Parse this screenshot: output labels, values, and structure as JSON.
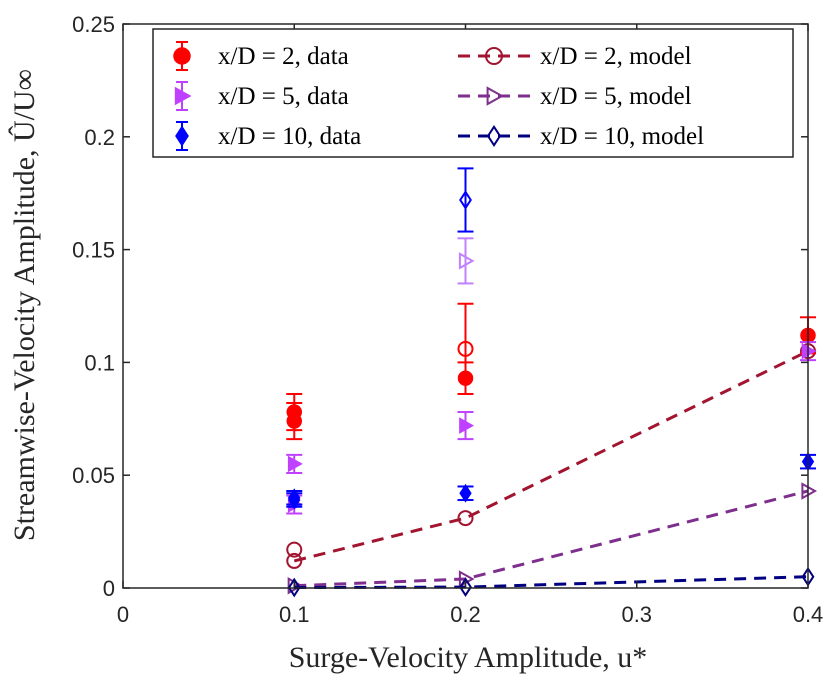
{
  "chart_data": {
    "type": "scatter",
    "xlabel": "Surge-Velocity Amplitude, u*",
    "ylabel": "Streamwise-Velocity Amplitude, Û/U∞",
    "xlim": [
      0,
      0.4
    ],
    "ylim": [
      0,
      0.25
    ],
    "xticks": [
      "0",
      "0.1",
      "0.2",
      "0.3",
      "0.4"
    ],
    "yticks": [
      "0",
      "0.05",
      "0.1",
      "0.15",
      "0.2",
      "0.25"
    ],
    "legend_position": "top",
    "series": [
      {
        "name": "x/D = 2, data",
        "kind": "data",
        "marker": "circle",
        "color": "#ff0000",
        "points": [
          {
            "x": 0.1,
            "y": 0.078,
            "err": 0.008
          },
          {
            "x": 0.1,
            "y": 0.074,
            "err": 0.008
          },
          {
            "x": 0.2,
            "y": 0.093,
            "err": 0.007
          },
          {
            "x": 0.4,
            "y": 0.112,
            "err": 0.008
          }
        ]
      },
      {
        "name": "x/D = 5, data",
        "kind": "data",
        "marker": "triangle-right",
        "color": "#c040ff",
        "points": [
          {
            "x": 0.1,
            "y": 0.055,
            "err": 0.004
          },
          {
            "x": 0.1,
            "y": 0.037,
            "err": 0.004
          },
          {
            "x": 0.2,
            "y": 0.072,
            "err": 0.006
          },
          {
            "x": 0.4,
            "y": 0.105,
            "err": 0.004
          }
        ]
      },
      {
        "name": "x/D = 10, data",
        "kind": "data",
        "marker": "diamond",
        "color": "#0000ff",
        "points": [
          {
            "x": 0.1,
            "y": 0.04,
            "err": 0.003
          },
          {
            "x": 0.1,
            "y": 0.039,
            "err": 0.003
          },
          {
            "x": 0.2,
            "y": 0.042,
            "err": 0.003
          },
          {
            "x": 0.4,
            "y": 0.056,
            "err": 0.003
          }
        ]
      },
      {
        "name": "x/D = 2, model",
        "kind": "model",
        "marker": "circle-open",
        "color": "#a2142f",
        "line_points": [
          {
            "x": 0.1,
            "y": 0.012
          },
          {
            "x": 0.2,
            "y": 0.031
          },
          {
            "x": 0.4,
            "y": 0.105
          }
        ],
        "extra_markers": [
          {
            "x": 0.1,
            "y": 0.017,
            "color": "#a2142f"
          },
          {
            "x": 0.2,
            "y": 0.106,
            "color": "#ff0000",
            "err": 0.02
          }
        ]
      },
      {
        "name": "x/D = 5, model",
        "kind": "model",
        "marker": "triangle-right-open",
        "color": "#7e2f8e",
        "line_points": [
          {
            "x": 0.1,
            "y": 0.001
          },
          {
            "x": 0.2,
            "y": 0.004
          },
          {
            "x": 0.4,
            "y": 0.043
          }
        ],
        "extra_markers": [
          {
            "x": 0.2,
            "y": 0.145,
            "color": "#c080ff",
            "err": 0.01
          }
        ]
      },
      {
        "name": "x/D = 10, model",
        "kind": "model",
        "marker": "diamond-open",
        "color": "#000080",
        "line_points": [
          {
            "x": 0.1,
            "y": 0.0002
          },
          {
            "x": 0.2,
            "y": 0.0004
          },
          {
            "x": 0.4,
            "y": 0.005
          }
        ],
        "extra_markers": [
          {
            "x": 0.2,
            "y": 0.172,
            "color": "#0000ff",
            "err": 0.014
          }
        ]
      }
    ]
  }
}
